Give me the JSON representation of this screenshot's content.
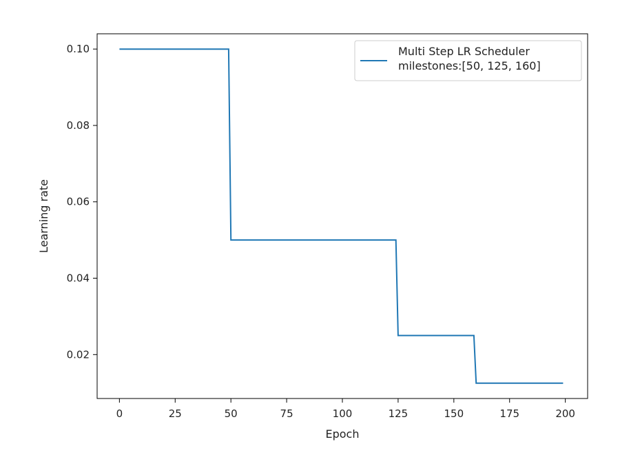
{
  "chart_data": {
    "type": "line",
    "title": "",
    "xlabel": "Epoch",
    "ylabel": "Learning rate",
    "xlim": [
      -10,
      210
    ],
    "ylim": [
      0.0085,
      0.104
    ],
    "x_ticks": [
      0,
      25,
      50,
      75,
      100,
      125,
      150,
      175,
      200
    ],
    "x_tick_labels": [
      "0",
      "25",
      "50",
      "75",
      "100",
      "125",
      "150",
      "175",
      "200"
    ],
    "y_ticks": [
      0.02,
      0.04,
      0.06,
      0.08,
      0.1
    ],
    "y_tick_labels": [
      "0.02",
      "0.04",
      "0.06",
      "0.08",
      "0.10"
    ],
    "grid": false,
    "legend_position": "top-right",
    "legend_lines": [
      "Multi Step LR Scheduler",
      "milestones:[50, 125, 160]"
    ],
    "series": [
      {
        "color": "#1f77b4",
        "x": [
          0,
          49,
          50,
          124,
          125,
          159,
          160,
          199
        ],
        "y": [
          0.1,
          0.1,
          0.05,
          0.05,
          0.025,
          0.025,
          0.0125,
          0.0125
        ]
      }
    ]
  }
}
